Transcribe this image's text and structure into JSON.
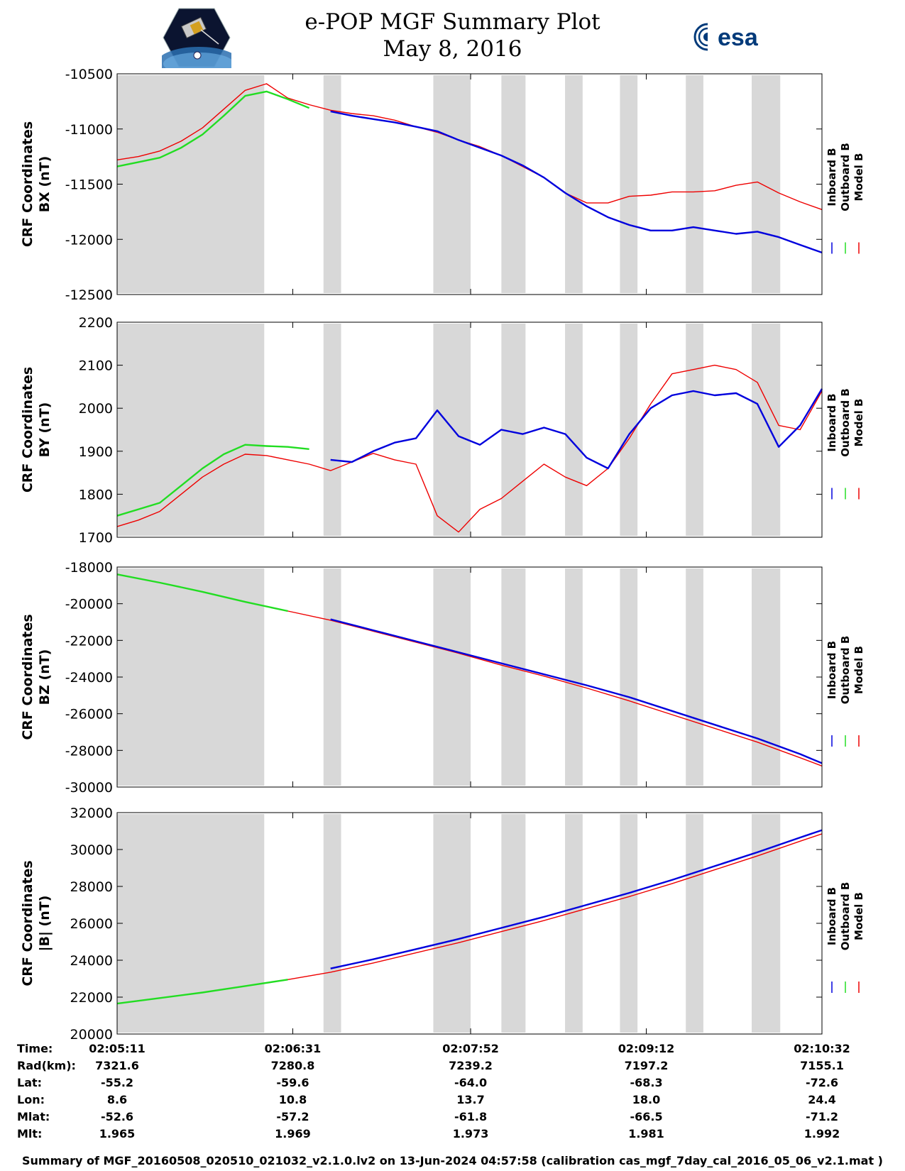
{
  "title": {
    "line1": "e-POP MGF Summary Plot",
    "line2": "May 8, 2016"
  },
  "logos": {
    "left": "cassiope-logo",
    "right_text": "esa"
  },
  "colors": {
    "inboard": "#0000dd",
    "outboard": "#22dd22",
    "model": "#ee0000",
    "shade": "#d8d8d8"
  },
  "legend": [
    "Inboard B",
    "Outboard B",
    "Model B"
  ],
  "chart_data": [
    {
      "type": "line",
      "ylabel_line1": "CRF Coordinates",
      "ylabel_line2": "BX (nT)",
      "ylim": [
        -12500,
        -10500
      ],
      "yticks": [
        "-10500",
        "-11000",
        "-11500",
        "-12000",
        "-12500"
      ],
      "ytick_values": [
        -10500,
        -11000,
        -11500,
        -12000,
        -12500
      ],
      "x": [
        0,
        40,
        80,
        120,
        160,
        200,
        240,
        280,
        320,
        360,
        400,
        440,
        480,
        520,
        560,
        600,
        640,
        680,
        720,
        760,
        800,
        840,
        880,
        920,
        960,
        1000,
        1040,
        1080,
        1120,
        1160,
        1200,
        1240,
        1280,
        1321
      ],
      "series": [
        {
          "name": "Model B",
          "values": [
            -11280,
            -11250,
            -11200,
            -11110,
            -10990,
            -10820,
            -10650,
            -10590,
            -10720,
            -10780,
            -10830,
            -10860,
            -10880,
            -10920,
            -10980,
            -11030,
            -11100,
            -11160,
            -11240,
            -11340,
            -11440,
            -11580,
            -11670,
            -11670,
            -11610,
            -11600,
            -11570,
            -11570,
            -11560,
            -11510,
            -11480,
            -11580,
            -11660,
            -11730
          ]
        },
        {
          "name": "Inboard B",
          "values": [
            null,
            null,
            null,
            null,
            null,
            null,
            null,
            null,
            null,
            null,
            -10840,
            -10880,
            -10910,
            -10940,
            -10980,
            -11020,
            -11100,
            -11170,
            -11240,
            -11330,
            -11440,
            -11580,
            -11700,
            -11800,
            -11870,
            -11920,
            -11920,
            -11890,
            -11920,
            -11950,
            -11930,
            -11980,
            -12050,
            -12120
          ]
        },
        {
          "name": "Outboard B",
          "values": [
            -11340,
            -11300,
            -11260,
            -11170,
            -11050,
            -10880,
            -10700,
            -10660,
            -10730,
            -10810,
            null,
            null,
            null,
            null,
            null,
            null,
            null,
            null,
            null,
            null,
            null,
            null,
            null,
            null,
            null,
            null,
            null,
            null,
            null,
            null,
            null,
            null,
            null,
            null
          ]
        }
      ]
    },
    {
      "type": "line",
      "ylabel_line1": "CRF Coordinates",
      "ylabel_line2": "BY (nT)",
      "ylim": [
        1700,
        2200
      ],
      "yticks": [
        "2200",
        "2100",
        "2000",
        "1900",
        "1800",
        "1700"
      ],
      "ytick_values": [
        2200,
        2100,
        2000,
        1900,
        1800,
        1700
      ],
      "x": [
        0,
        40,
        80,
        120,
        160,
        200,
        240,
        280,
        320,
        360,
        400,
        440,
        480,
        520,
        560,
        600,
        640,
        680,
        720,
        760,
        800,
        840,
        880,
        920,
        960,
        1000,
        1040,
        1080,
        1120,
        1160,
        1200,
        1240,
        1280,
        1321
      ],
      "series": [
        {
          "name": "Model B",
          "values": [
            1725,
            1740,
            1760,
            1800,
            1840,
            1870,
            1893,
            1890,
            1880,
            1870,
            1855,
            1875,
            1895,
            1880,
            1870,
            1750,
            1712,
            1765,
            1790,
            1830,
            1870,
            1840,
            1820,
            1860,
            1930,
            2010,
            2080,
            2090,
            2100,
            2090,
            2060,
            1960,
            1950,
            2040
          ]
        },
        {
          "name": "Inboard B",
          "values": [
            null,
            null,
            null,
            null,
            null,
            null,
            null,
            null,
            null,
            null,
            1880,
            1875,
            1900,
            1920,
            1930,
            1995,
            1935,
            1915,
            1950,
            1940,
            1955,
            1940,
            1885,
            1860,
            1940,
            2000,
            2030,
            2040,
            2030,
            2035,
            2010,
            1910,
            1960,
            2045
          ]
        },
        {
          "name": "Outboard B",
          "values": [
            1750,
            1765,
            1780,
            1820,
            1860,
            1893,
            1915,
            1912,
            1910,
            1905,
            null,
            null,
            null,
            null,
            null,
            null,
            null,
            null,
            null,
            null,
            null,
            null,
            null,
            null,
            null,
            null,
            null,
            null,
            null,
            null,
            null,
            null,
            null,
            null
          ]
        }
      ]
    },
    {
      "type": "line",
      "ylabel_line1": "CRF Coordinates",
      "ylabel_line2": "BZ (nT)",
      "ylim": [
        -30000,
        -18000
      ],
      "yticks": [
        "-18000",
        "-20000",
        "-22000",
        "-24000",
        "-26000",
        "-28000",
        "-30000"
      ],
      "ytick_values": [
        -18000,
        -20000,
        -22000,
        -24000,
        -26000,
        -28000,
        -30000
      ],
      "x": [
        0,
        80,
        160,
        240,
        320,
        400,
        480,
        560,
        640,
        720,
        800,
        880,
        960,
        1040,
        1120,
        1200,
        1280,
        1321
      ],
      "series": [
        {
          "name": "Model B",
          "values": [
            -18400,
            -18850,
            -19350,
            -19900,
            -20400,
            -20900,
            -21500,
            -22100,
            -22700,
            -23350,
            -23950,
            -24600,
            -25300,
            -26050,
            -26800,
            -27550,
            -28400,
            -28850
          ]
        },
        {
          "name": "Inboard B",
          "values": [
            null,
            null,
            null,
            null,
            null,
            -20850,
            -21450,
            -22050,
            -22650,
            -23250,
            -23850,
            -24450,
            -25100,
            -25850,
            -26600,
            -27350,
            -28200,
            -28700
          ]
        },
        {
          "name": "Outboard B",
          "values": [
            -18400,
            -18850,
            -19350,
            -19900,
            -20400,
            null,
            null,
            null,
            null,
            null,
            null,
            null,
            null,
            null,
            null,
            null,
            null,
            null
          ]
        }
      ]
    },
    {
      "type": "line",
      "ylabel_line1": "CRF Coordinates",
      "ylabel_line2": "|B| (nT)",
      "ylim": [
        20000,
        32000
      ],
      "yticks": [
        "32000",
        "30000",
        "28000",
        "26000",
        "24000",
        "22000",
        "20000"
      ],
      "ytick_values": [
        32000,
        30000,
        28000,
        26000,
        24000,
        22000,
        20000
      ],
      "x": [
        0,
        80,
        160,
        240,
        320,
        400,
        480,
        560,
        640,
        720,
        800,
        880,
        960,
        1040,
        1120,
        1200,
        1280,
        1321
      ],
      "series": [
        {
          "name": "Model B",
          "values": [
            21650,
            21950,
            22250,
            22600,
            22950,
            23350,
            23850,
            24400,
            24950,
            25550,
            26150,
            26800,
            27450,
            28150,
            28900,
            29650,
            30450,
            30850
          ]
        },
        {
          "name": "Inboard B",
          "values": [
            null,
            null,
            null,
            null,
            null,
            23550,
            24050,
            24600,
            25150,
            25750,
            26350,
            27000,
            27650,
            28350,
            29100,
            29850,
            30650,
            31050
          ]
        },
        {
          "name": "Outboard B",
          "values": [
            21650,
            21950,
            22250,
            22600,
            22950,
            null,
            null,
            null,
            null,
            null,
            null,
            null,
            null,
            null,
            null,
            null,
            null,
            null
          ]
        }
      ]
    }
  ],
  "xaxis": {
    "range_seconds": [
      0,
      321
    ],
    "tick_seconds": [
      0,
      80,
      161,
      241,
      321
    ]
  },
  "shaded_intervals_seconds": [
    [
      0,
      67
    ],
    [
      94,
      102
    ],
    [
      144,
      161
    ],
    [
      175,
      186
    ],
    [
      204,
      212
    ],
    [
      229,
      237
    ],
    [
      259,
      267
    ],
    [
      289,
      302
    ]
  ],
  "info": {
    "labels": [
      "Time:",
      "Rad(km):",
      "Lat:",
      "Lon:",
      "Mlat:",
      "Mlt:"
    ],
    "columns": [
      {
        "time": "02:05:11",
        "rad": "7321.6",
        "lat": "-55.2",
        "lon": "8.6",
        "mlat": "-52.6",
        "mlt": "1.965"
      },
      {
        "time": "02:06:31",
        "rad": "7280.8",
        "lat": "-59.6",
        "lon": "10.8",
        "mlat": "-57.2",
        "mlt": "1.969"
      },
      {
        "time": "02:07:52",
        "rad": "7239.2",
        "lat": "-64.0",
        "lon": "13.7",
        "mlat": "-61.8",
        "mlt": "1.973"
      },
      {
        "time": "02:09:12",
        "rad": "7197.2",
        "lat": "-68.3",
        "lon": "18.0",
        "mlat": "-66.5",
        "mlt": "1.981"
      },
      {
        "time": "02:10:32",
        "rad": "7155.1",
        "lat": "-72.6",
        "lon": "24.4",
        "mlat": "-71.2",
        "mlt": "1.992"
      }
    ]
  },
  "footer": "Summary of MGF_20160508_020510_021032_v2.1.0.lv2 on 13-Jun-2024 04:57:58 (calibration cas_mgf_7day_cal_2016_05_06_v2.1.mat )"
}
